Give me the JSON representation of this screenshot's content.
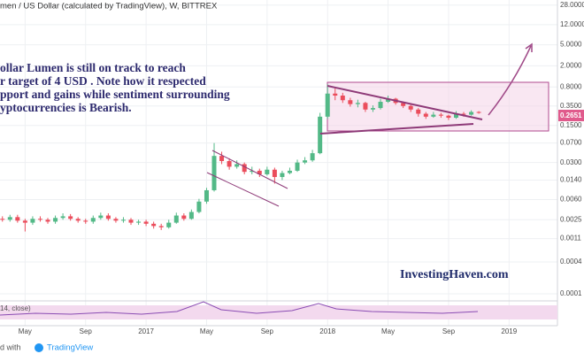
{
  "chart_data": {
    "type": "candlestick",
    "title": "men / US Dollar (calculated by TradingView), W, BITTREX",
    "annotation_lines": [
      "ollar Lumen is still on track to reach",
      "r target of 4 USD . Note how it respected",
      "pport and gains while sentiment surrounding",
      "yptocurrencies is Bearish."
    ],
    "watermark": "InvestingHaven.com",
    "indicator_label": "14, close)",
    "footer": "d with",
    "footer_brand": "TradingView",
    "last_price_label": "0.2651",
    "up_color": "#53b987",
    "down_color": "#eb4d5c",
    "log_scale": true,
    "grid": true,
    "xlim": [
      2.34,
      39.2
    ],
    "xticks": [
      {
        "value": 4,
        "label": "May"
      },
      {
        "value": 8,
        "label": "Sep"
      },
      {
        "value": 12,
        "label": "2017"
      },
      {
        "value": 16,
        "label": "May"
      },
      {
        "value": 20,
        "label": "Sep"
      },
      {
        "value": 24,
        "label": "2018"
      },
      {
        "value": 28,
        "label": "May"
      },
      {
        "value": 32,
        "label": "Sep"
      },
      {
        "value": 36,
        "label": "2019"
      }
    ],
    "ylim": [
      7.35e-05,
      35
    ],
    "yticks": [
      {
        "value": 28,
        "label": "28.0000"
      },
      {
        "value": 12,
        "label": "12.0000"
      },
      {
        "value": 5,
        "label": "5.0000"
      },
      {
        "value": 2,
        "label": "2.0000"
      },
      {
        "value": 0.8,
        "label": "0.8000"
      },
      {
        "value": 0.35,
        "label": "0.3500"
      },
      {
        "value": 0.15,
        "label": "0.1500"
      },
      {
        "value": 0.07,
        "label": "0.0700"
      },
      {
        "value": 0.03,
        "label": "0.0300"
      },
      {
        "value": 0.014,
        "label": "0.0140"
      },
      {
        "value": 0.006,
        "label": "0.0060"
      },
      {
        "value": 0.0025,
        "label": "0.0025"
      },
      {
        "value": 0.0011,
        "label": "0.0011"
      },
      {
        "value": 0.0004,
        "label": "0.0004"
      },
      {
        "value": 0.0001,
        "label": "0.0001"
      }
    ],
    "x": [
      2.5,
      3,
      3.5,
      4,
      4.5,
      5,
      5.5,
      6,
      6.5,
      7,
      7.5,
      8,
      8.5,
      9,
      9.5,
      10,
      10.5,
      11,
      11.5,
      12,
      12.5,
      13,
      13.5,
      14,
      14.5,
      15,
      15.5,
      16,
      16.5,
      17,
      17.5,
      18,
      18.5,
      19,
      19.5,
      20,
      20.5,
      21,
      21.5,
      22,
      22.5,
      23,
      23.5,
      24,
      24.5,
      25,
      25.5,
      26,
      26.5,
      27,
      27.5,
      28,
      28.5,
      29,
      29.5,
      30,
      30.5,
      31,
      31.5,
      32,
      32.5,
      33,
      33.5,
      34
    ],
    "open": [
      0.0026,
      0.0025,
      0.0028,
      0.0024,
      0.0022,
      0.0026,
      0.0025,
      0.0023,
      0.0027,
      0.0029,
      0.0026,
      0.0024,
      0.0023,
      0.0027,
      0.003,
      0.0026,
      0.0024,
      0.0025,
      0.0022,
      0.0023,
      0.0021,
      0.0019,
      0.0018,
      0.0022,
      0.003,
      0.0026,
      0.0035,
      0.0055,
      0.009,
      0.04,
      0.032,
      0.025,
      0.028,
      0.02,
      0.021,
      0.018,
      0.022,
      0.016,
      0.019,
      0.021,
      0.03,
      0.033,
      0.045,
      0.22,
      0.6,
      0.55,
      0.45,
      0.38,
      0.4,
      0.3,
      0.32,
      0.42,
      0.48,
      0.4,
      0.35,
      0.3,
      0.25,
      0.22,
      0.24,
      0.23,
      0.21,
      0.25,
      0.24,
      0.27
    ],
    "high": [
      0.0029,
      0.0031,
      0.0031,
      0.0026,
      0.0029,
      0.0029,
      0.0027,
      0.003,
      0.0033,
      0.0032,
      0.0028,
      0.0026,
      0.003,
      0.0034,
      0.0033,
      0.0028,
      0.0028,
      0.0027,
      0.0025,
      0.0025,
      0.0023,
      0.0021,
      0.0025,
      0.0034,
      0.0033,
      0.0039,
      0.0062,
      0.01,
      0.07,
      0.048,
      0.036,
      0.033,
      0.03,
      0.025,
      0.023,
      0.025,
      0.024,
      0.021,
      0.024,
      0.034,
      0.038,
      0.052,
      0.26,
      0.9,
      0.75,
      0.62,
      0.5,
      0.46,
      0.42,
      0.36,
      0.48,
      0.55,
      0.5,
      0.42,
      0.37,
      0.32,
      0.27,
      0.27,
      0.26,
      0.24,
      0.28,
      0.27,
      0.29,
      0.28
    ],
    "low": [
      0.0023,
      0.0023,
      0.0022,
      0.0015,
      0.002,
      0.0023,
      0.0021,
      0.0021,
      0.0025,
      0.0024,
      0.0022,
      0.0021,
      0.0021,
      0.0025,
      0.0024,
      0.0022,
      0.0022,
      0.002,
      0.002,
      0.0019,
      0.0017,
      0.0016,
      0.0017,
      0.0021,
      0.0024,
      0.0025,
      0.0033,
      0.005,
      0.0085,
      0.028,
      0.022,
      0.023,
      0.018,
      0.018,
      0.016,
      0.017,
      0.012,
      0.014,
      0.018,
      0.02,
      0.028,
      0.031,
      0.043,
      0.2,
      0.45,
      0.4,
      0.34,
      0.33,
      0.27,
      0.27,
      0.3,
      0.4,
      0.37,
      0.32,
      0.27,
      0.22,
      0.2,
      0.21,
      0.21,
      0.19,
      0.2,
      0.22,
      0.23,
      0.25
    ],
    "close": [
      0.0025,
      0.0028,
      0.0024,
      0.0022,
      0.0026,
      0.0025,
      0.0023,
      0.0027,
      0.0029,
      0.0026,
      0.0024,
      0.0023,
      0.0027,
      0.003,
      0.0026,
      0.0024,
      0.0025,
      0.0022,
      0.0023,
      0.0021,
      0.0019,
      0.0018,
      0.0022,
      0.003,
      0.0026,
      0.0035,
      0.0055,
      0.009,
      0.04,
      0.032,
      0.025,
      0.028,
      0.02,
      0.021,
      0.018,
      0.022,
      0.016,
      0.019,
      0.021,
      0.03,
      0.033,
      0.045,
      0.22,
      0.6,
      0.55,
      0.45,
      0.38,
      0.4,
      0.3,
      0.32,
      0.42,
      0.48,
      0.4,
      0.35,
      0.3,
      0.25,
      0.22,
      0.24,
      0.23,
      0.21,
      0.25,
      0.24,
      0.27,
      0.2651
    ]
  }
}
